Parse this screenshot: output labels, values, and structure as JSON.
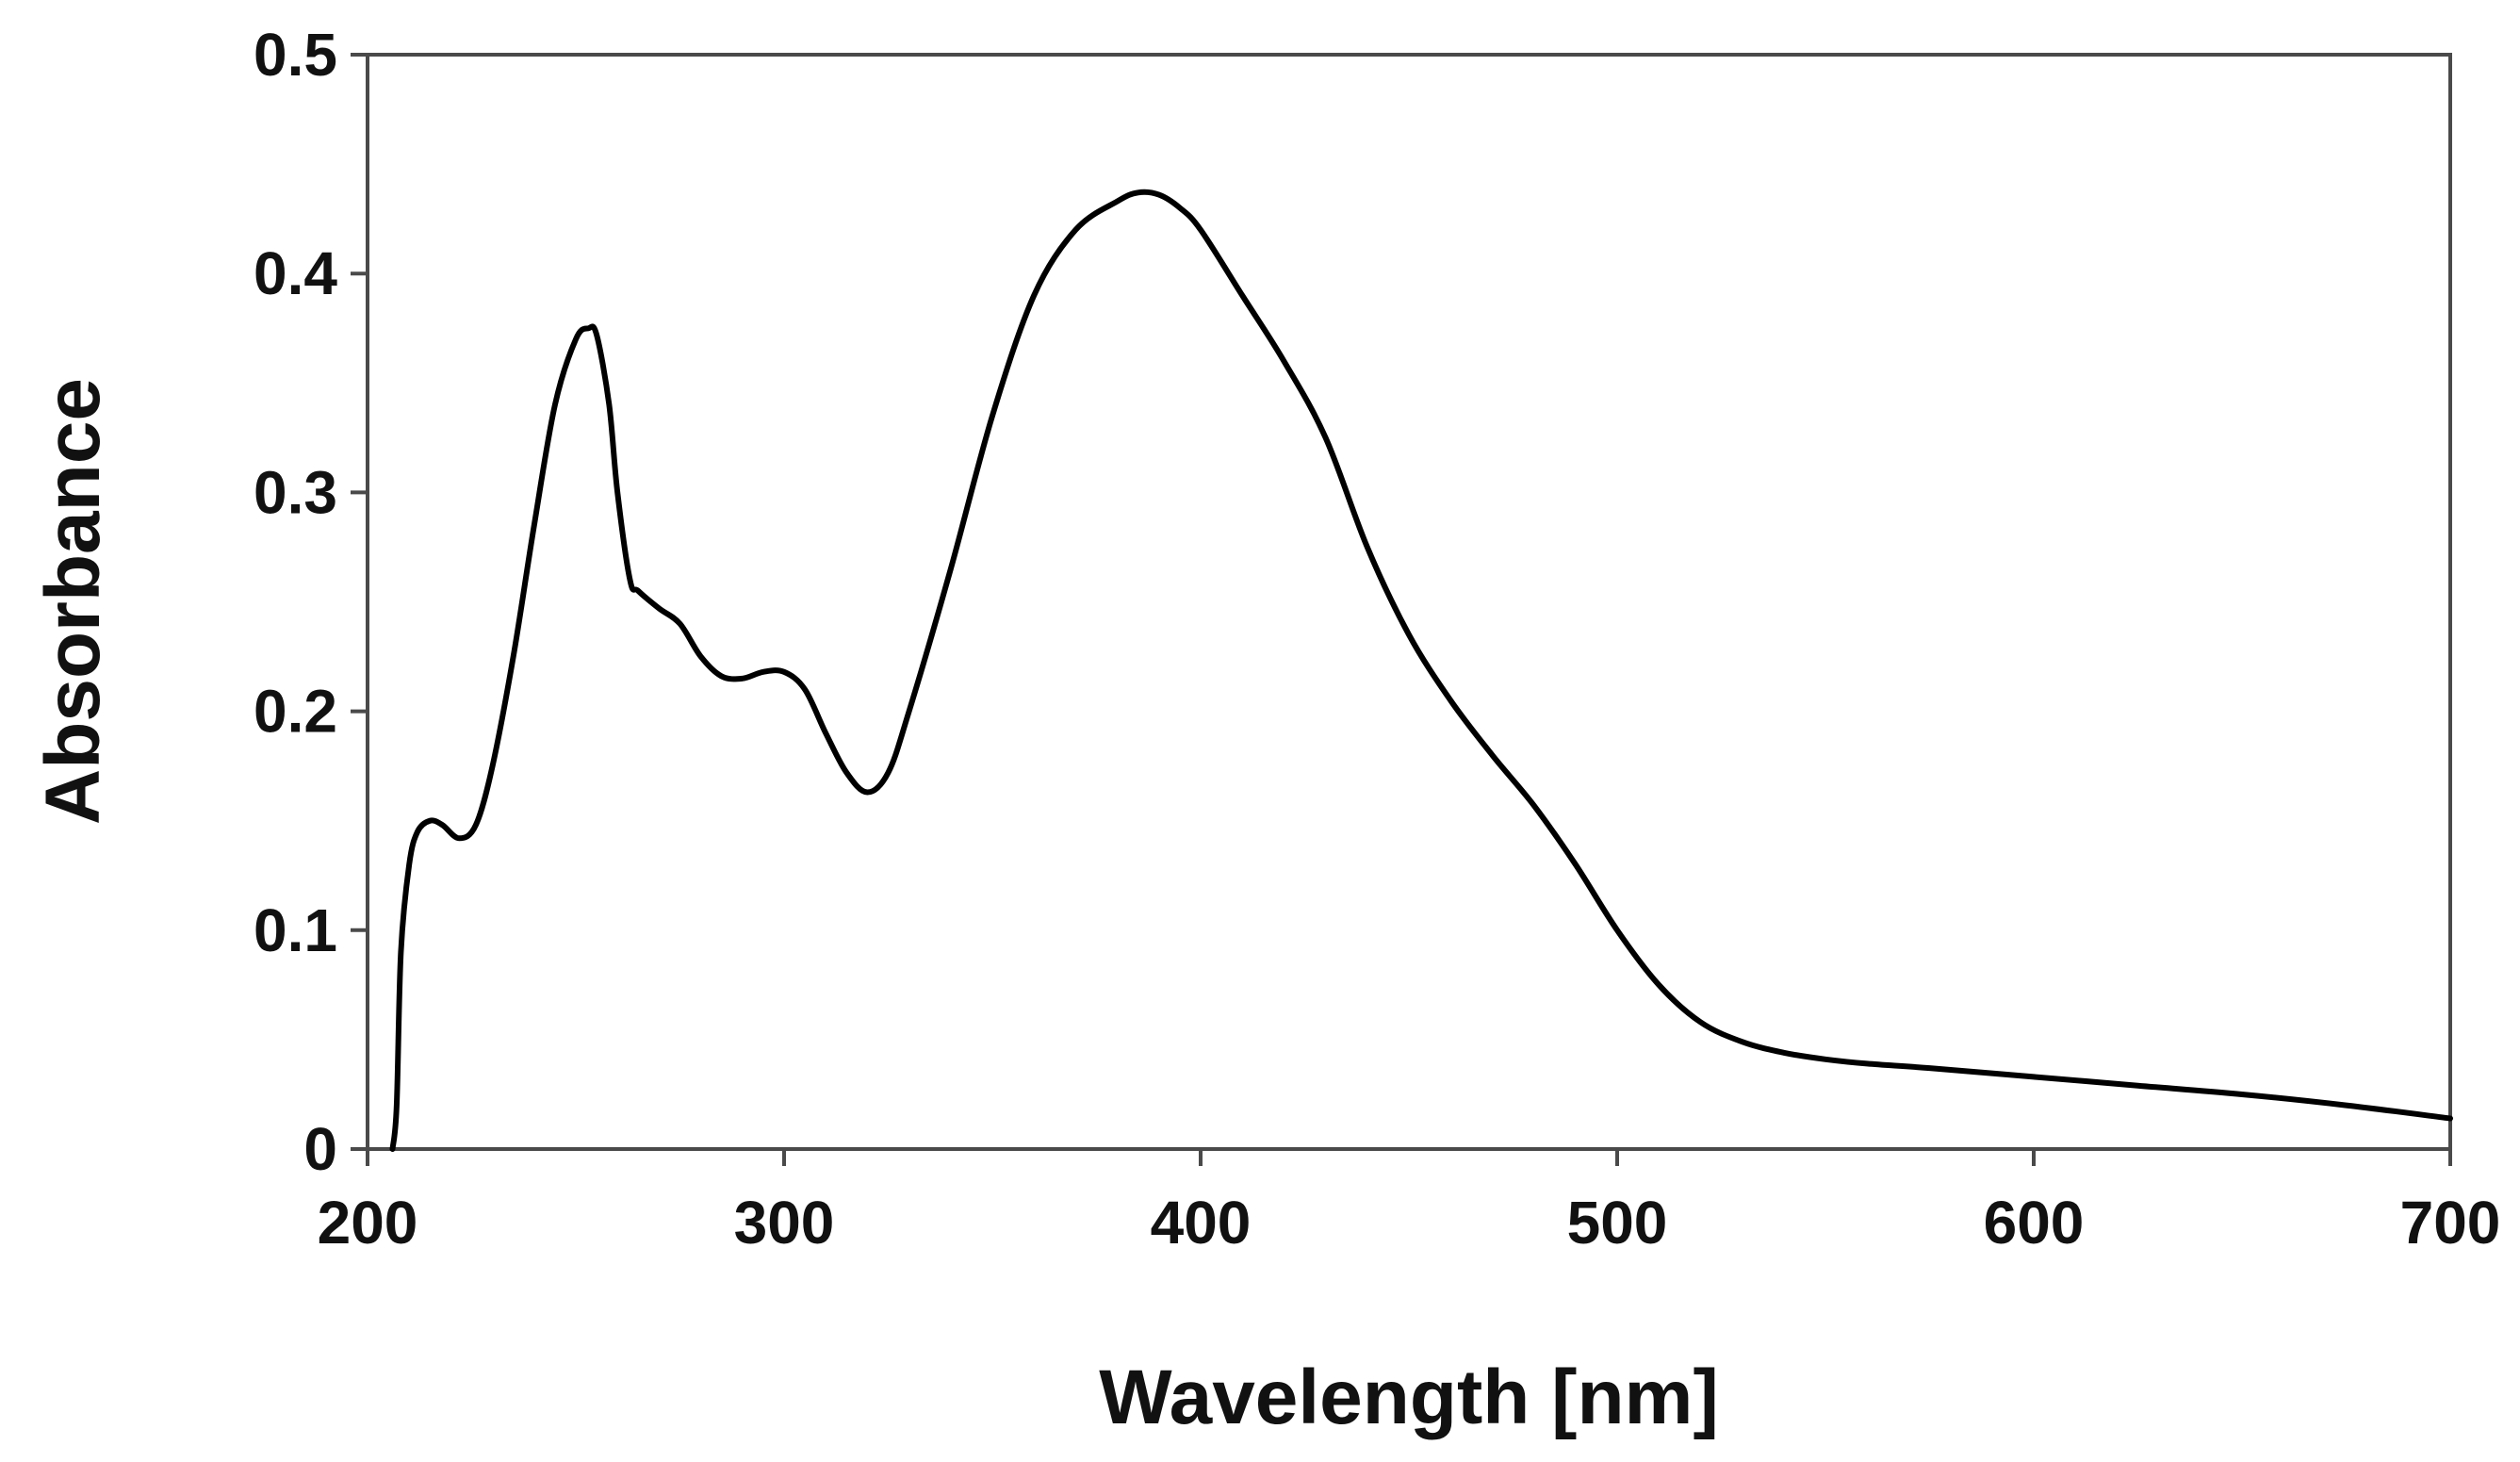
{
  "chart_data": {
    "type": "line",
    "title": "",
    "xlabel": "Wavelength [nm]",
    "ylabel": "Absorbance",
    "xlim": [
      200,
      700
    ],
    "ylim": [
      0,
      0.5
    ],
    "x_ticks": [
      200,
      300,
      400,
      500,
      600,
      700
    ],
    "x_tick_labels": [
      "200",
      "300",
      "400",
      "500",
      "600",
      "700"
    ],
    "y_ticks": [
      0,
      0.1,
      0.2,
      0.3,
      0.4,
      0.5
    ],
    "y_tick_labels": [
      "0",
      "0.1",
      "0.2",
      "0.3",
      "0.4",
      "0.5"
    ],
    "grid": false,
    "legend": "none",
    "colors": {
      "line": "#000000",
      "frame": "#4a4a4a",
      "text": "#111111"
    },
    "series": [
      {
        "name": "Absorbance",
        "x": [
          206,
          207,
          208,
          210,
          212,
          215,
          218,
          222,
          226,
          230,
          235,
          240,
          245,
          250,
          253,
          255,
          258,
          260,
          263,
          265,
          270,
          275,
          280,
          285,
          290,
          295,
          300,
          305,
          310,
          315,
          320,
          325,
          330,
          340,
          350,
          360,
          370,
          380,
          385,
          390,
          395,
          400,
          410,
          420,
          430,
          440,
          450,
          460,
          470,
          480,
          490,
          500,
          510,
          520,
          530,
          540,
          550,
          560,
          575,
          600,
          625,
          650,
          675,
          700
        ],
        "y": [
          0,
          0.02,
          0.09,
          0.13,
          0.145,
          0.15,
          0.148,
          0.142,
          0.148,
          0.175,
          0.225,
          0.285,
          0.34,
          0.37,
          0.375,
          0.372,
          0.34,
          0.3,
          0.26,
          0.255,
          0.247,
          0.24,
          0.225,
          0.216,
          0.215,
          0.218,
          0.218,
          0.21,
          0.19,
          0.172,
          0.163,
          0.172,
          0.2,
          0.265,
          0.335,
          0.39,
          0.42,
          0.433,
          0.437,
          0.436,
          0.43,
          0.42,
          0.39,
          0.36,
          0.325,
          0.275,
          0.235,
          0.205,
          0.18,
          0.157,
          0.13,
          0.1,
          0.075,
          0.058,
          0.049,
          0.044,
          0.041,
          0.039,
          0.037,
          0.033,
          0.029,
          0.025,
          0.02,
          0.014
        ]
      }
    ]
  }
}
